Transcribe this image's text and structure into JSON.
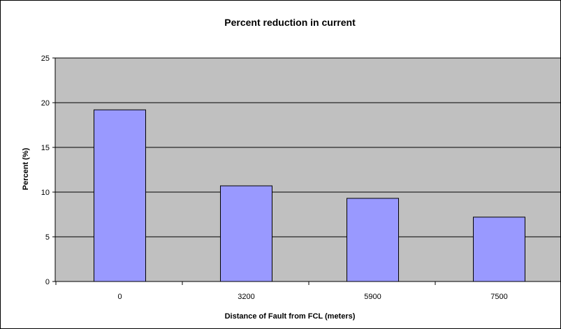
{
  "chart_data": {
    "type": "bar",
    "title": "Percent reduction in current",
    "xlabel": "Distance of Fault from FCL (meters)",
    "ylabel": "Percent (%)",
    "categories": [
      "0",
      "3200",
      "5900",
      "7500"
    ],
    "values": [
      19.2,
      10.7,
      9.3,
      7.2
    ],
    "ylim": [
      0,
      25
    ],
    "yticks": [
      "0",
      "5",
      "10",
      "15",
      "20",
      "25"
    ],
    "grid": true,
    "legend": "none"
  },
  "colors": {
    "plot_background": "#C0C0C0",
    "bar_fill": "#9999FF",
    "bar_stroke": "#000000",
    "gridline": "#000000"
  }
}
